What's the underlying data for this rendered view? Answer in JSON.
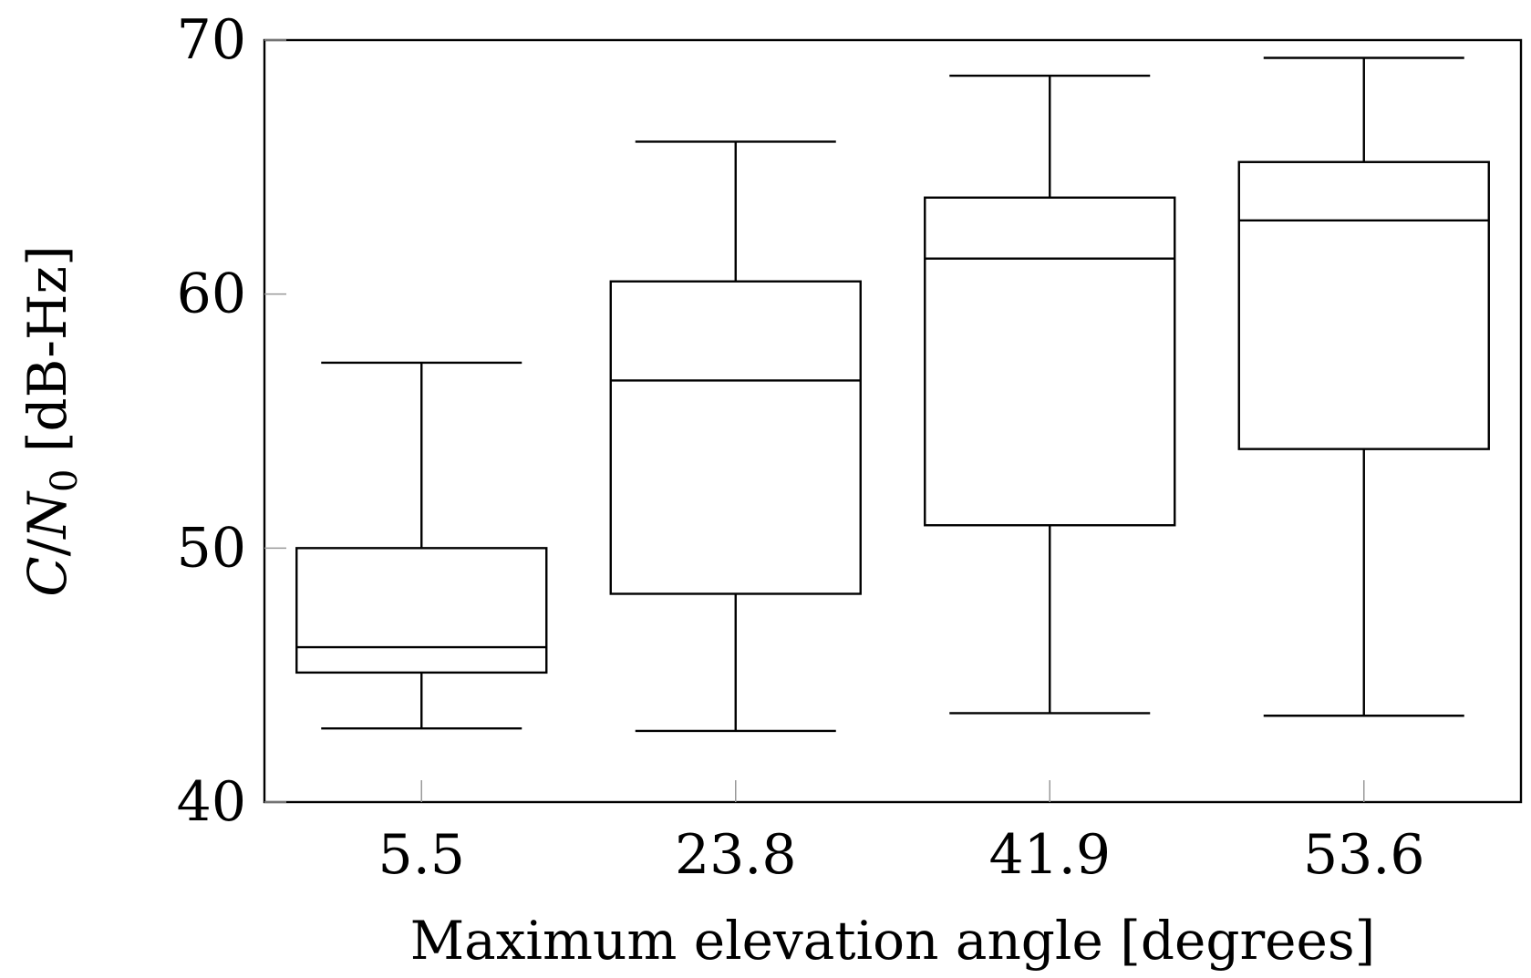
{
  "chart_data": {
    "type": "box",
    "xlabel": "Maximum elevation angle [degrees]",
    "ylabel_parts": {
      "c": "C",
      "slash": "/",
      "n": "N",
      "sub": "0",
      "unit": " [dB-Hz]"
    },
    "categories": [
      "5.5",
      "23.8",
      "41.9",
      "53.6"
    ],
    "boxes": [
      {
        "whisker_low": 42.9,
        "q1": 45.1,
        "median": 46.1,
        "q3": 50.0,
        "whisker_high": 57.3
      },
      {
        "whisker_low": 42.8,
        "q1": 48.2,
        "median": 56.6,
        "q3": 60.5,
        "whisker_high": 66.0
      },
      {
        "whisker_low": 43.5,
        "q1": 50.9,
        "median": 61.4,
        "q3": 63.8,
        "whisker_high": 68.6
      },
      {
        "whisker_low": 43.4,
        "q1": 53.9,
        "median": 62.9,
        "q3": 65.2,
        "whisker_high": 69.3
      }
    ],
    "yticks": [
      "40",
      "50",
      "60",
      "70"
    ],
    "ylim": [
      40,
      70
    ],
    "grid": false,
    "colors": {
      "stroke": "#000000",
      "fill": "#ffffff",
      "tick": "#999999"
    }
  }
}
